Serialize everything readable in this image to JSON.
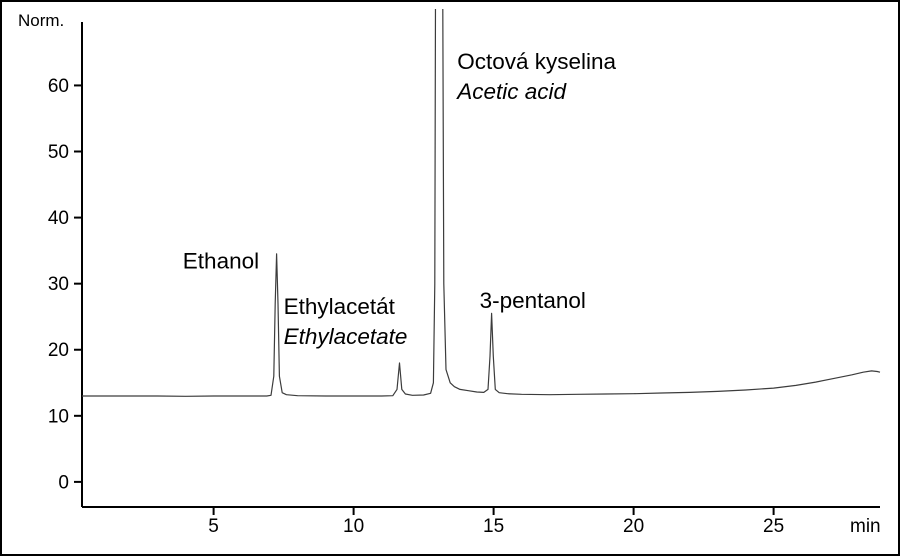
{
  "chart_data": {
    "type": "line",
    "title": "",
    "ylabel": "Norm.",
    "xlabel": "min",
    "x_range": [
      0.3,
      28.8
    ],
    "y_range": [
      -3.8,
      69.6
    ],
    "x_ticks": [
      5,
      10,
      15,
      20,
      25
    ],
    "y_ticks": [
      0,
      10,
      20,
      30,
      40,
      50,
      60
    ],
    "grid": false,
    "legend": false,
    "line_color": "#3c3c3c",
    "axis_color": "#000000",
    "baseline_level": 13,
    "peaks": [
      {
        "name": "Ethanol",
        "retention_min": 7.25,
        "height": 34.5,
        "clipped": false
      },
      {
        "name": "Ethylacetate",
        "retention_min": 11.64,
        "height": 18,
        "clipped": false
      },
      {
        "name": "Acetic acid",
        "retention_min": 13.05,
        "height": null,
        "clipped": true
      },
      {
        "name": "3-pentanol",
        "retention_min": 14.93,
        "height": 25.5,
        "clipped": false
      }
    ],
    "annotations": [
      {
        "id": "ethanol",
        "x": 3.9,
        "y": 32.3,
        "lines": [
          {
            "text": "Ethanol",
            "italic": false
          }
        ]
      },
      {
        "id": "ethylacetate",
        "x": 7.5,
        "y": 25.4,
        "lines": [
          {
            "text": "Ethylacetát",
            "italic": false
          },
          {
            "text": "Ethylacetate",
            "italic": true
          }
        ]
      },
      {
        "id": "acetic-acid",
        "x": 13.7,
        "y": 62.5,
        "lines": [
          {
            "text": "Octová kyselina",
            "italic": false
          },
          {
            "text": "Acetic acid",
            "italic": true
          }
        ]
      },
      {
        "id": "pentanol",
        "x": 14.5,
        "y": 26.3,
        "lines": [
          {
            "text": "3-pentanol",
            "italic": false
          }
        ]
      }
    ],
    "trace": [
      [
        0.3,
        13
      ],
      [
        1,
        13
      ],
      [
        2,
        13
      ],
      [
        3,
        13
      ],
      [
        4,
        12.95
      ],
      [
        5,
        13
      ],
      [
        6,
        13
      ],
      [
        6.9,
        13
      ],
      [
        7.05,
        13.1
      ],
      [
        7.15,
        16
      ],
      [
        7.2,
        27
      ],
      [
        7.25,
        34.5
      ],
      [
        7.3,
        27
      ],
      [
        7.35,
        16
      ],
      [
        7.45,
        13.5
      ],
      [
        7.6,
        13.2
      ],
      [
        8,
        13.05
      ],
      [
        9,
        13
      ],
      [
        10,
        13
      ],
      [
        11,
        13
      ],
      [
        11.4,
        13.05
      ],
      [
        11.55,
        14
      ],
      [
        11.64,
        18
      ],
      [
        11.72,
        14
      ],
      [
        11.85,
        13.3
      ],
      [
        12.1,
        13.1
      ],
      [
        12.5,
        13.15
      ],
      [
        12.75,
        13.4
      ],
      [
        12.85,
        15
      ],
      [
        12.9,
        30
      ],
      [
        12.93,
        80
      ],
      [
        13.18,
        80
      ],
      [
        13.22,
        30
      ],
      [
        13.3,
        17
      ],
      [
        13.45,
        15
      ],
      [
        13.6,
        14.4
      ],
      [
        13.8,
        14
      ],
      [
        14.1,
        13.8
      ],
      [
        14.4,
        13.6
      ],
      [
        14.65,
        13.55
      ],
      [
        14.8,
        14
      ],
      [
        14.87,
        19
      ],
      [
        14.93,
        25.5
      ],
      [
        14.99,
        19
      ],
      [
        15.06,
        14
      ],
      [
        15.2,
        13.5
      ],
      [
        15.5,
        13.35
      ],
      [
        16,
        13.25
      ],
      [
        17,
        13.2
      ],
      [
        18,
        13.25
      ],
      [
        19,
        13.3
      ],
      [
        20,
        13.35
      ],
      [
        21,
        13.45
      ],
      [
        22,
        13.55
      ],
      [
        23,
        13.7
      ],
      [
        24,
        13.9
      ],
      [
        25,
        14.2
      ],
      [
        25.8,
        14.6
      ],
      [
        26.5,
        15.1
      ],
      [
        27.2,
        15.7
      ],
      [
        27.8,
        16.2
      ],
      [
        28.2,
        16.6
      ],
      [
        28.5,
        16.8
      ],
      [
        28.7,
        16.7
      ],
      [
        28.8,
        16.6
      ]
    ]
  }
}
